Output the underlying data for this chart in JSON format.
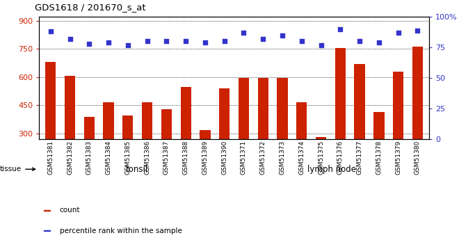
{
  "title": "GDS1618 / 201670_s_at",
  "categories": [
    "GSM51381",
    "GSM51382",
    "GSM51383",
    "GSM51384",
    "GSM51385",
    "GSM51386",
    "GSM51387",
    "GSM51388",
    "GSM51389",
    "GSM51390",
    "GSM51371",
    "GSM51372",
    "GSM51373",
    "GSM51374",
    "GSM51375",
    "GSM51376",
    "GSM51377",
    "GSM51378",
    "GSM51379",
    "GSM51380"
  ],
  "bar_values": [
    680,
    608,
    390,
    465,
    395,
    465,
    430,
    548,
    320,
    540,
    597,
    597,
    597,
    467,
    280,
    755,
    670,
    415,
    628,
    760
  ],
  "dot_values": [
    88,
    82,
    78,
    79,
    77,
    80,
    80,
    80,
    79,
    80,
    87,
    82,
    85,
    80,
    77,
    90,
    80,
    79,
    87,
    89
  ],
  "bar_color": "#cc2200",
  "dot_color": "#3333cc",
  "ylim_left": [
    270,
    920
  ],
  "ylim_right": [
    0,
    100
  ],
  "yticks_left": [
    300,
    450,
    600,
    750,
    900
  ],
  "yticks_right": [
    0,
    25,
    50,
    75,
    100
  ],
  "ytick_right_labels": [
    "0",
    "25",
    "50",
    "75",
    "100%"
  ],
  "grid_y_values": [
    300,
    450,
    600,
    750,
    900
  ],
  "n_tonsil": 10,
  "n_lymph": 10,
  "tonsil_label": "tonsil",
  "lymphnode_label": "lymph node",
  "tonsil_color": "#bbeeaa",
  "lymphnode_color": "#55cc55",
  "tissue_label": "tissue",
  "legend_count": "count",
  "legend_percentile": "percentile rank within the sample",
  "bar_bottom": 270,
  "xticklabel_bg": "#cccccc",
  "fig_width": 6.6,
  "fig_height": 3.45,
  "dpi": 100
}
